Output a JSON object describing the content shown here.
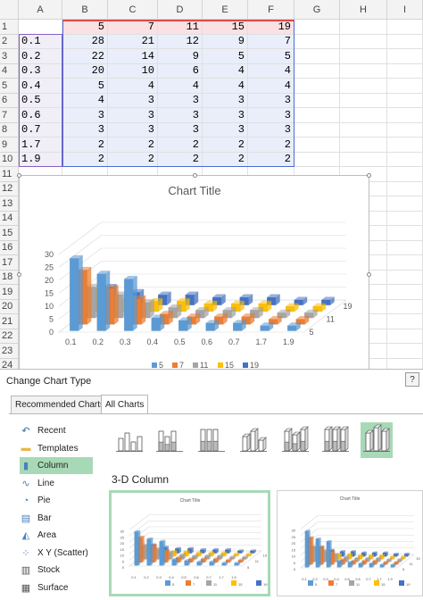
{
  "sheet": {
    "columns": [
      "A",
      "B",
      "C",
      "D",
      "E",
      "F",
      "G",
      "H",
      "I"
    ],
    "rows": [
      "1",
      "2",
      "3",
      "4",
      "5",
      "6",
      "7",
      "8",
      "9",
      "10",
      "11",
      "12",
      "13",
      "14",
      "15",
      "16",
      "17",
      "18",
      "19",
      "20",
      "21",
      "22",
      "23",
      "24"
    ],
    "header_row": [
      "",
      "5",
      "7",
      "11",
      "15",
      "19"
    ],
    "data_rows": [
      [
        "0.1",
        "28",
        "21",
        "12",
        "9",
        "7"
      ],
      [
        "0.2",
        "22",
        "14",
        "9",
        "5",
        "5"
      ],
      [
        "0.3",
        "20",
        "10",
        "6",
        "4",
        "4"
      ],
      [
        "0.4",
        "5",
        "4",
        "4",
        "4",
        "4"
      ],
      [
        "0.5",
        "4",
        "3",
        "3",
        "3",
        "3"
      ],
      [
        "0.6",
        "3",
        "3",
        "3",
        "3",
        "3"
      ],
      [
        "0.7",
        "3",
        "3",
        "3",
        "3",
        "3"
      ],
      [
        "1.7",
        "2",
        "2",
        "2",
        "2",
        "2"
      ],
      [
        "1.9",
        "2",
        "2",
        "2",
        "2",
        "2"
      ]
    ]
  },
  "chart_data": {
    "type": "bar",
    "title": "Chart Title",
    "categories": [
      "0.1",
      "0.2",
      "0.3",
      "0.4",
      "0.5",
      "0.6",
      "0.7",
      "1.7",
      "1.9"
    ],
    "series": [
      {
        "name": "5",
        "values": [
          28,
          22,
          20,
          5,
          4,
          3,
          3,
          2,
          2
        ],
        "color": "#5b9bd5"
      },
      {
        "name": "7",
        "values": [
          21,
          14,
          10,
          4,
          3,
          3,
          3,
          2,
          2
        ],
        "color": "#ed7d31"
      },
      {
        "name": "11",
        "values": [
          12,
          9,
          6,
          4,
          3,
          3,
          3,
          2,
          2
        ],
        "color": "#a5a5a5"
      },
      {
        "name": "15",
        "values": [
          9,
          5,
          4,
          4,
          3,
          3,
          3,
          2,
          2
        ],
        "color": "#ffc000"
      },
      {
        "name": "19",
        "values": [
          7,
          5,
          4,
          4,
          3,
          3,
          3,
          2,
          2
        ],
        "color": "#4472c4"
      }
    ],
    "y_ticks": [
      "0",
      "5",
      "10",
      "15",
      "20",
      "25",
      "30"
    ],
    "depth_labels": [
      "5",
      "11",
      "19"
    ],
    "ylim": [
      0,
      30
    ],
    "legend": "bottom"
  },
  "dialog": {
    "title": "Change Chart Type",
    "help": "?",
    "tabs": [
      "Recommended Charts",
      "All Charts"
    ],
    "active_tab": "All Charts",
    "chart_types": [
      "Recent",
      "Templates",
      "Column",
      "Line",
      "Pie",
      "Bar",
      "Area",
      "X Y (Scatter)",
      "Stock",
      "Surface"
    ],
    "selected_type": "Column",
    "section_title": "3-D Column",
    "preview_title": "Chart Title",
    "accent_color": "#a8d9b6"
  }
}
